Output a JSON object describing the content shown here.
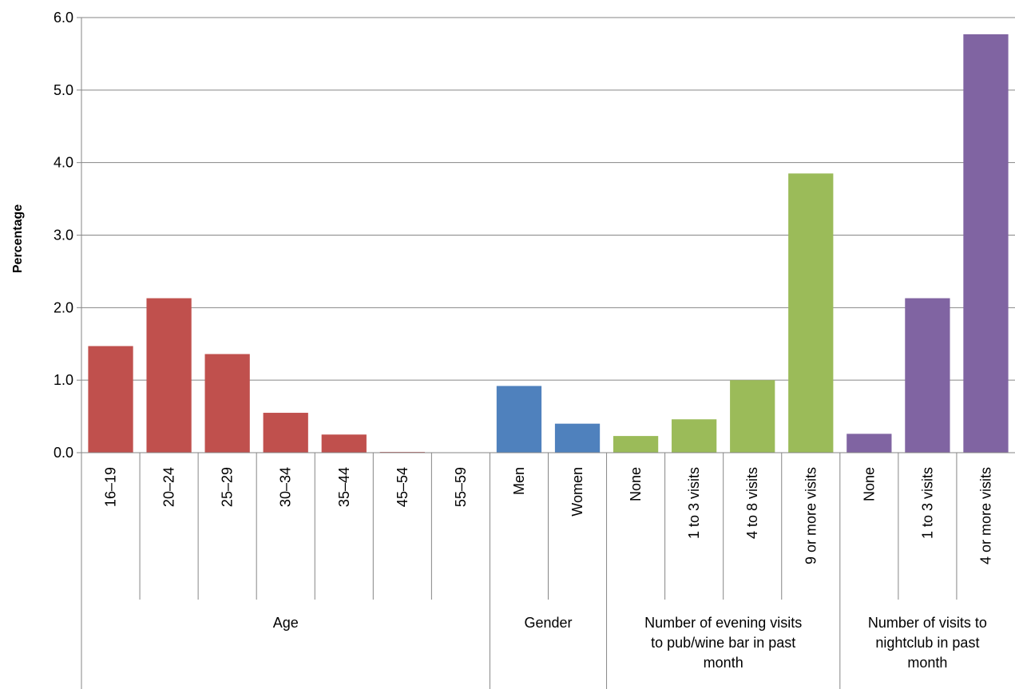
{
  "chart_data": {
    "type": "bar",
    "ylabel": "Percentage",
    "xlabel": "",
    "ylim": [
      0,
      6
    ],
    "yticks": [
      "0.0",
      "1.0",
      "2.0",
      "3.0",
      "4.0",
      "5.0",
      "6.0"
    ],
    "grid": true,
    "categories": [
      "16–19",
      "20–24",
      "25–29",
      "30–34",
      "35–44",
      "45–54",
      "55–59",
      "Men",
      "Women",
      "None",
      "1 to 3 visits",
      "4 to 8 visits",
      "9 or more visits",
      "None",
      "1 to 3 visits",
      "4 or more visits"
    ],
    "values": [
      1.47,
      2.13,
      1.36,
      0.55,
      0.25,
      0.01,
      0.0,
      0.92,
      0.4,
      0.23,
      0.46,
      1.0,
      3.85,
      0.26,
      2.13,
      5.77
    ],
    "groups": [
      {
        "lines": [
          "Age"
        ],
        "start": 0,
        "count": 7,
        "color": "#C0504D"
      },
      {
        "lines": [
          "Gender"
        ],
        "start": 7,
        "count": 2,
        "color": "#4F81BD"
      },
      {
        "lines": [
          "Number of evening visits",
          "to pub/wine bar in past",
          "month"
        ],
        "start": 9,
        "count": 4,
        "color": "#9BBB59"
      },
      {
        "lines": [
          "Number of visits to",
          "nightclub in past",
          "month"
        ],
        "start": 13,
        "count": 3,
        "color": "#8064A2"
      }
    ]
  }
}
